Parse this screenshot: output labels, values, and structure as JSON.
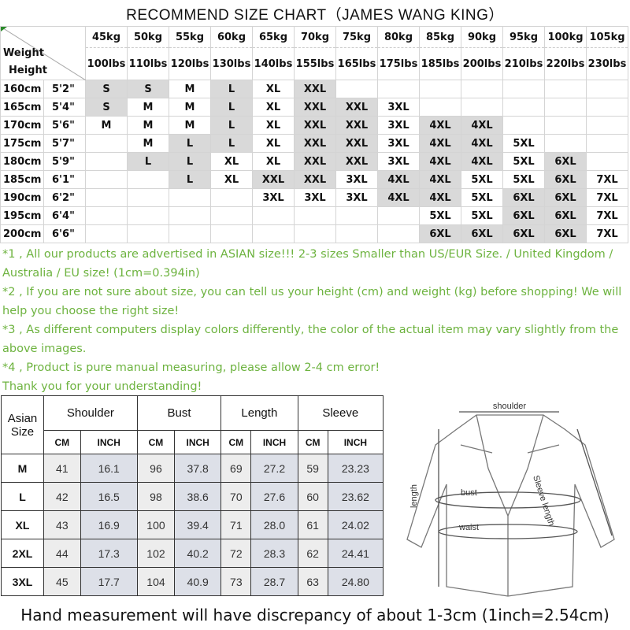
{
  "title": "RECOMMEND SIZE CHART（JAMES WANG KING）",
  "size_chart": {
    "corner_top": "Weight",
    "corner_bottom": "Height",
    "weights_kg": [
      "45kg",
      "50kg",
      "55kg",
      "60kg",
      "65kg",
      "70kg",
      "75kg",
      "80kg",
      "85kg",
      "90kg",
      "95kg",
      "100kg",
      "105kg"
    ],
    "weights_lbs": [
      "100lbs",
      "110lbs",
      "120lbs",
      "130lbs",
      "140lbs",
      "155lbs",
      "165lbs",
      "175lbs",
      "185lbs",
      "200lbs",
      "210lbs",
      "220lbs",
      "230lbs"
    ],
    "shade_color": "#d9d9d9",
    "rows": [
      {
        "cm": "160cm",
        "ft": "5'2\"",
        "sizes": [
          "S",
          "S",
          "M",
          "L",
          "XL",
          "XXL",
          "",
          "",
          "",
          "",
          "",
          "",
          ""
        ],
        "shaded": [
          1,
          1,
          0,
          1,
          0,
          1,
          0,
          0,
          0,
          0,
          0,
          0,
          0
        ]
      },
      {
        "cm": "165cm",
        "ft": "5'4\"",
        "sizes": [
          "S",
          "M",
          "M",
          "L",
          "XL",
          "XXL",
          "XXL",
          "3XL",
          "",
          "",
          "",
          "",
          ""
        ],
        "shaded": [
          1,
          0,
          0,
          1,
          0,
          1,
          1,
          0,
          0,
          0,
          0,
          0,
          0
        ]
      },
      {
        "cm": "170cm",
        "ft": "5'6\"",
        "sizes": [
          "M",
          "M",
          "M",
          "L",
          "XL",
          "XXL",
          "XXL",
          "3XL",
          "4XL",
          "4XL",
          "",
          "",
          ""
        ],
        "shaded": [
          0,
          0,
          0,
          1,
          0,
          1,
          1,
          0,
          1,
          1,
          0,
          0,
          0
        ]
      },
      {
        "cm": "175cm",
        "ft": "5'7\"",
        "sizes": [
          "",
          "M",
          "L",
          "L",
          "XL",
          "XXL",
          "XXL",
          "3XL",
          "4XL",
          "4XL",
          "5XL",
          "",
          ""
        ],
        "shaded": [
          0,
          0,
          1,
          1,
          0,
          1,
          1,
          0,
          1,
          1,
          0,
          0,
          0
        ]
      },
      {
        "cm": "180cm",
        "ft": "5'9\"",
        "sizes": [
          "",
          "L",
          "L",
          "XL",
          "XL",
          "XXL",
          "XXL",
          "3XL",
          "4XL",
          "4XL",
          "5XL",
          "6XL",
          ""
        ],
        "shaded": [
          0,
          1,
          1,
          0,
          0,
          1,
          1,
          0,
          1,
          1,
          0,
          1,
          0
        ]
      },
      {
        "cm": "185cm",
        "ft": "6'1\"",
        "sizes": [
          "",
          "",
          "L",
          "XL",
          "XXL",
          "XXL",
          "3XL",
          "4XL",
          "4XL",
          "5XL",
          "5XL",
          "6XL",
          "7XL"
        ],
        "shaded": [
          0,
          0,
          1,
          0,
          1,
          1,
          0,
          1,
          1,
          0,
          0,
          1,
          0
        ]
      },
      {
        "cm": "190cm",
        "ft": "6'2\"",
        "sizes": [
          "",
          "",
          "",
          "",
          "3XL",
          "3XL",
          "3XL",
          "4XL",
          "4XL",
          "5XL",
          "6XL",
          "6XL",
          "7XL"
        ],
        "shaded": [
          0,
          0,
          0,
          0,
          0,
          0,
          0,
          1,
          1,
          0,
          1,
          1,
          0
        ]
      },
      {
        "cm": "195cm",
        "ft": "6'4\"",
        "sizes": [
          "",
          "",
          "",
          "",
          "",
          "",
          "",
          "",
          "5XL",
          "5XL",
          "6XL",
          "6XL",
          "7XL"
        ],
        "shaded": [
          0,
          0,
          0,
          0,
          0,
          0,
          0,
          0,
          0,
          0,
          1,
          1,
          0
        ]
      },
      {
        "cm": "200cm",
        "ft": "6'6\"",
        "sizes": [
          "",
          "",
          "",
          "",
          "",
          "",
          "",
          "",
          "6XL",
          "6XL",
          "6XL",
          "6XL",
          "7XL"
        ],
        "shaded": [
          0,
          0,
          0,
          0,
          0,
          0,
          0,
          0,
          1,
          1,
          1,
          1,
          0
        ]
      }
    ]
  },
  "notes_color": "#6db33f",
  "notes": [
    "*1 , All our products are advertised in ASIAN size!!! 2-3 sizes Smaller than US/EUR Size. / United Kingdom / Australia / EU size! (1cm=0.394in)",
    "*2 , If you are not sure about size, you can tell us your height (cm) and weight (kg) before shopping! We will help you choose the right size!",
    "*3 , As different computers display colors differently, the color of the actual item may vary slightly from the above images.",
    "*4 , Product is pure manual measuring, please allow 2-4 cm error!",
    "Thank you for your understanding!"
  ],
  "measurements": {
    "size_header": "Asian Size",
    "groups": [
      "Shoulder",
      "Bust",
      "Length",
      "Sleeve"
    ],
    "units": [
      "CM",
      "INCH"
    ],
    "rows": [
      {
        "size": "M",
        "values": [
          "41",
          "16.1",
          "96",
          "37.8",
          "69",
          "27.2",
          "59",
          "23.23"
        ]
      },
      {
        "size": "L",
        "values": [
          "42",
          "16.5",
          "98",
          "38.6",
          "70",
          "27.6",
          "60",
          "23.62"
        ]
      },
      {
        "size": "XL",
        "values": [
          "43",
          "16.9",
          "100",
          "39.4",
          "71",
          "28.0",
          "61",
          "24.02"
        ]
      },
      {
        "size": "2XL",
        "values": [
          "44",
          "17.3",
          "102",
          "40.2",
          "72",
          "28.3",
          "62",
          "24.41"
        ]
      },
      {
        "size": "3XL",
        "values": [
          "45",
          "17.7",
          "104",
          "40.9",
          "73",
          "28.7",
          "63",
          "24.80"
        ]
      }
    ]
  },
  "diagram": {
    "shoulder": "shoulder",
    "length": "length",
    "bust": "bust",
    "waist": "waist",
    "sleeve": "Sleeve length"
  },
  "footer": "Hand measurement will have discrepancy of about 1-3cm (1inch=2.54cm)"
}
